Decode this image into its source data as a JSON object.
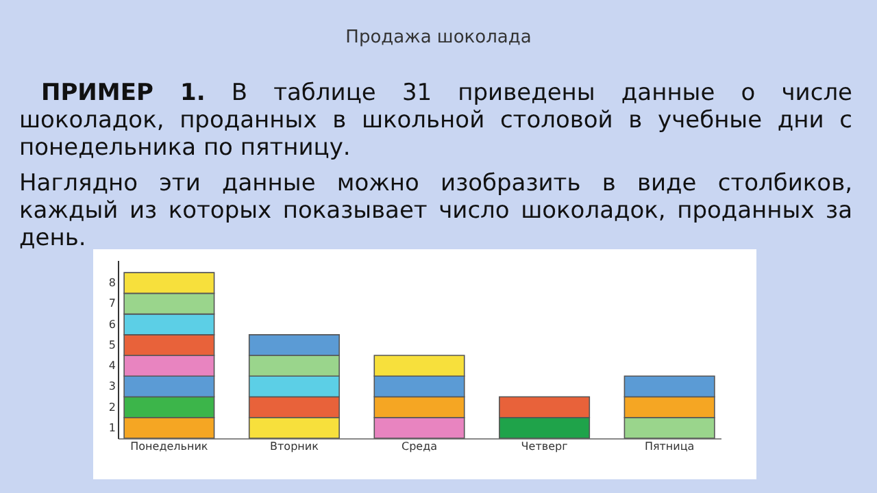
{
  "chart_data": {
    "type": "bar",
    "stacked": true,
    "title": "Продажа шоколада",
    "annotations": [
      "ПРИМЕР 1.",
      "В таблице 31 приведены данные о числе шоколадок, проданных в школьной столовой в учебные дни с понедельника по пятницу.",
      "Наглядно эти данные можно изобразить в виде столбиков, каждый из которых показывает число шоколадок, проданных за день."
    ],
    "categories": [
      "Понедельник",
      "Вторник",
      "Среда",
      "Четверг",
      "Пятница"
    ],
    "series": [
      {
        "colors": [
          "#f5a623",
          "#f7e03c",
          "#e884c0",
          "#1fa34a",
          "#9ad58c"
        ],
        "values": [
          1,
          1,
          1,
          1,
          1
        ]
      },
      {
        "colors": [
          "#3cb54a",
          "#e8623a",
          "#f5a623",
          "#e8623a",
          "#f5a623"
        ],
        "values": [
          1,
          1,
          1,
          1,
          1
        ]
      },
      {
        "colors": [
          "#5b9bd5",
          "#5ccfe6",
          "#5b9bd5",
          null,
          "#5b9bd5"
        ],
        "values": [
          1,
          1,
          1,
          null,
          1
        ]
      },
      {
        "colors": [
          "#e884c0",
          "#9ad58c",
          "#f7e03c",
          null,
          null
        ],
        "values": [
          1,
          1,
          1,
          null,
          null
        ]
      },
      {
        "colors": [
          "#e8623a",
          "#5b9bd5",
          null,
          null,
          null
        ],
        "values": [
          1,
          1,
          null,
          null,
          null
        ]
      },
      {
        "colors": [
          "#5ccfe6",
          null,
          null,
          null,
          null
        ],
        "values": [
          1,
          null,
          null,
          null,
          null
        ]
      },
      {
        "colors": [
          "#9ad58c",
          null,
          null,
          null,
          null
        ],
        "values": [
          1,
          null,
          null,
          null,
          null
        ]
      },
      {
        "colors": [
          "#f7e03c",
          null,
          null,
          null,
          null
        ],
        "values": [
          1,
          null,
          null,
          null,
          null
        ]
      }
    ],
    "ylim": [
      0,
      8.6
    ],
    "yticks": [
      {
        "value": 0.5,
        "label": "1"
      },
      {
        "value": 1.5,
        "label": "2"
      },
      {
        "value": 2.5,
        "label": "3"
      },
      {
        "value": 3.5,
        "label": "4"
      },
      {
        "value": 4.5,
        "label": "5"
      },
      {
        "value": 5.5,
        "label": "6"
      },
      {
        "value": 6.5,
        "label": "7"
      },
      {
        "value": 7.5,
        "label": "8"
      }
    ],
    "grid": false
  }
}
